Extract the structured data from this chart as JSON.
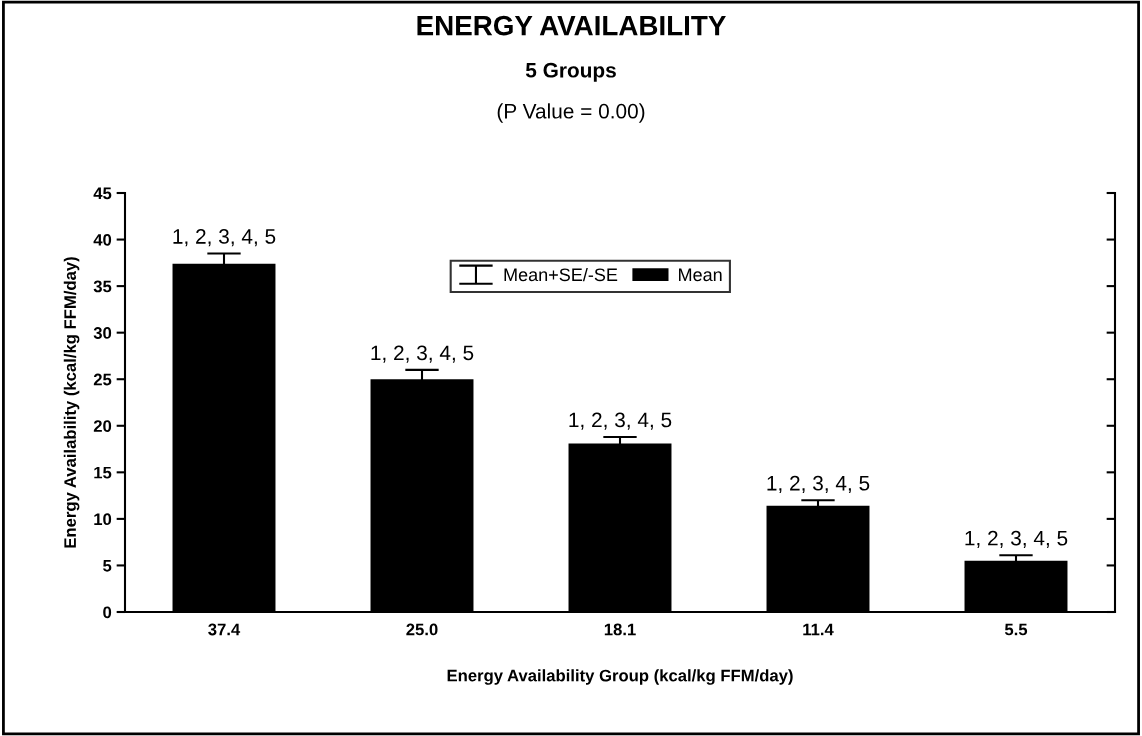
{
  "chart_data": {
    "type": "bar",
    "title": "ENERGY AVAILABILITY",
    "subtitle": "5 Groups",
    "xlabel": "Energy Availability Group (kcal/kg FFM/day)",
    "ylabel": "Energy Availability (kcal/kg FFM/day)",
    "categories": [
      "37.4",
      "25.0",
      "18.1",
      "11.4",
      "5.5"
    ],
    "series": [
      {
        "name": "Mean",
        "color": "#000000",
        "values": [
          37.4,
          25.0,
          18.1,
          11.4,
          5.5
        ],
        "errors": [
          1.1,
          1.0,
          0.7,
          0.6,
          0.6
        ]
      }
    ],
    "ylim": [
      0,
      45
    ],
    "yticks": [
      0,
      5,
      10,
      15,
      20,
      25,
      30,
      35,
      40,
      45
    ],
    "grid": false,
    "legend": "top",
    "annotations": [
      "(P Value = 0.00)",
      "Mean+SE/-SE",
      {
        "text": "1, 2, 3, 4, 5",
        "x": "37.4",
        "y": 38.5
      },
      {
        "text": "1, 2, 3, 4, 5",
        "x": "25.0",
        "y": 26.0
      },
      {
        "text": "1, 2, 3, 4, 5",
        "x": "18.1",
        "y": 18.8
      },
      {
        "text": "1, 2, 3, 4, 5",
        "x": "11.4",
        "y": 12.0
      },
      {
        "text": "1, 2, 3, 4, 5",
        "x": "5.5",
        "y": 6.1
      }
    ]
  }
}
